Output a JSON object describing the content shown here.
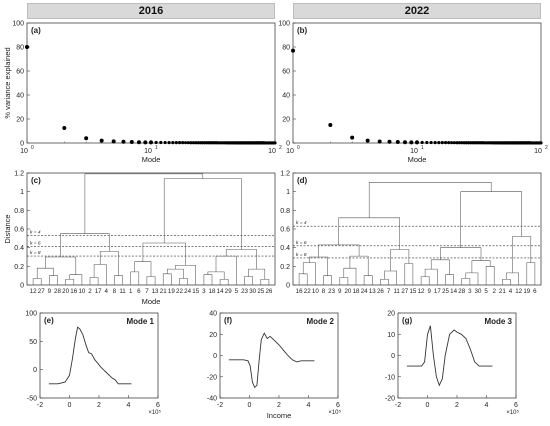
{
  "headers": {
    "left": "2016",
    "right": "2022"
  },
  "chart_data": [
    {
      "id": "a",
      "panel_label": "(a)",
      "type": "scatter",
      "x_scale": "log",
      "xlabel": "Mode",
      "ylabel": "% variance explained",
      "xlim": [
        1,
        100
      ],
      "ylim": [
        0,
        100
      ],
      "xticks": [
        {
          "v": 1,
          "label": "10",
          "exp": "0"
        },
        {
          "v": 10,
          "label": "10",
          "exp": "1"
        },
        {
          "v": 100,
          "label": "10",
          "exp": "2"
        }
      ],
      "yticks": [
        0,
        20,
        40,
        60,
        80,
        100
      ],
      "x": [
        1,
        2,
        3,
        4,
        5,
        6,
        7,
        8,
        9,
        10,
        11,
        12,
        13,
        14,
        15,
        16,
        17,
        18,
        19,
        20,
        21,
        22,
        23,
        24,
        25,
        26,
        27,
        28,
        29,
        30,
        31,
        32,
        33,
        34,
        35,
        36,
        37,
        38,
        39,
        40,
        41,
        42,
        43,
        44,
        45,
        46,
        47,
        48,
        49,
        50,
        51,
        52,
        53,
        54,
        55,
        56,
        57,
        58,
        59,
        60,
        61,
        62,
        63,
        64,
        65,
        66,
        67,
        68,
        69,
        70,
        71,
        72,
        73,
        74,
        75,
        76,
        77,
        78,
        79,
        80,
        81,
        82,
        83,
        84,
        85,
        86,
        87,
        88,
        89,
        90,
        91,
        92,
        93,
        94,
        95,
        96,
        97,
        98,
        99,
        100
      ],
      "y": [
        80,
        12.5,
        4,
        2,
        1.4,
        1,
        0.8,
        0.65,
        0.55,
        0.5,
        0.45,
        0.4,
        0.38,
        0.36,
        0.34,
        0.32,
        0.3,
        0.29,
        0.28,
        0.27,
        0.26,
        0.25,
        0.24,
        0.23,
        0.22,
        0.22,
        0.21,
        0.21,
        0.2,
        0.2,
        0.19,
        0.19,
        0.18,
        0.18,
        0.17,
        0.17,
        0.17,
        0.16,
        0.16,
        0.16,
        0.15,
        0.15,
        0.15,
        0.14,
        0.14,
        0.14,
        0.14,
        0.13,
        0.13,
        0.13,
        0.13,
        0.12,
        0.12,
        0.12,
        0.12,
        0.12,
        0.11,
        0.11,
        0.11,
        0.11,
        0.11,
        0.1,
        0.1,
        0.1,
        0.1,
        0.1,
        0.1,
        0.09,
        0.09,
        0.09,
        0.09,
        0.09,
        0.09,
        0.09,
        0.08,
        0.08,
        0.08,
        0.08,
        0.08,
        0.08,
        0.08,
        0.08,
        0.07,
        0.07,
        0.07,
        0.07,
        0.07,
        0.07,
        0.07,
        0.07,
        0.07,
        0.06,
        0.06,
        0.06,
        0.06,
        0.06,
        0.06,
        0.06,
        0.06,
        0.06
      ]
    },
    {
      "id": "b",
      "panel_label": "(b)",
      "type": "scatter",
      "x_scale": "log",
      "xlabel": "Mode",
      "ylabel": "",
      "xlim": [
        1,
        100
      ],
      "ylim": [
        0,
        100
      ],
      "xticks": [
        {
          "v": 1,
          "label": "10",
          "exp": "0"
        },
        {
          "v": 10,
          "label": "10",
          "exp": "1"
        },
        {
          "v": 100,
          "label": "10",
          "exp": "2"
        }
      ],
      "yticks": [
        0,
        20,
        40,
        60,
        80,
        100
      ],
      "x": [
        1,
        2,
        3,
        4,
        5,
        6,
        7,
        8,
        9,
        10,
        11,
        12,
        13,
        14,
        15,
        16,
        17,
        18,
        19,
        20,
        21,
        22,
        23,
        24,
        25,
        26,
        27,
        28,
        29,
        30,
        31,
        32,
        33,
        34,
        35,
        36,
        37,
        38,
        39,
        40,
        41,
        42,
        43,
        44,
        45,
        46,
        47,
        48,
        49,
        50,
        51,
        52,
        53,
        54,
        55,
        56,
        57,
        58,
        59,
        60,
        61,
        62,
        63,
        64,
        65,
        66,
        67,
        68,
        69,
        70,
        71,
        72,
        73,
        74,
        75,
        76,
        77,
        78,
        79,
        80,
        81,
        82,
        83,
        84,
        85,
        86,
        87,
        88,
        89,
        90,
        91,
        92,
        93,
        94,
        95,
        96,
        97,
        98,
        99,
        100
      ],
      "y": [
        77,
        15,
        4.5,
        2,
        1.3,
        1,
        0.8,
        0.65,
        0.55,
        0.5,
        0.45,
        0.4,
        0.38,
        0.36,
        0.34,
        0.32,
        0.3,
        0.29,
        0.28,
        0.27,
        0.26,
        0.25,
        0.24,
        0.23,
        0.22,
        0.22,
        0.21,
        0.21,
        0.2,
        0.2,
        0.19,
        0.19,
        0.18,
        0.18,
        0.17,
        0.17,
        0.17,
        0.16,
        0.16,
        0.16,
        0.15,
        0.15,
        0.15,
        0.14,
        0.14,
        0.14,
        0.14,
        0.13,
        0.13,
        0.13,
        0.13,
        0.12,
        0.12,
        0.12,
        0.12,
        0.12,
        0.11,
        0.11,
        0.11,
        0.11,
        0.11,
        0.1,
        0.1,
        0.1,
        0.1,
        0.1,
        0.1,
        0.09,
        0.09,
        0.09,
        0.09,
        0.09,
        0.09,
        0.09,
        0.08,
        0.08,
        0.08,
        0.08,
        0.08,
        0.08,
        0.08,
        0.08,
        0.07,
        0.07,
        0.07,
        0.07,
        0.07,
        0.07,
        0.07,
        0.07,
        0.07,
        0.06,
        0.06,
        0.06,
        0.06,
        0.06,
        0.06,
        0.06,
        0.06,
        0.06
      ]
    },
    {
      "id": "c",
      "panel_label": "(c)",
      "type": "dendrogram",
      "xlabel": "Mode",
      "ylabel": "Distance",
      "ylim": [
        0,
        1.2
      ],
      "yticks": [
        0,
        0.2,
        0.4,
        0.6,
        0.8,
        1.0,
        1.2
      ],
      "leaves": [
        "12",
        "27",
        "9",
        "28",
        "20",
        "16",
        "10",
        "2",
        "17",
        "4",
        "8",
        "11",
        "1",
        "6",
        "7",
        "13",
        "21",
        "19",
        "22",
        "24",
        "15",
        "3",
        "18",
        "14",
        "29",
        "5",
        "23",
        "30",
        "25",
        "26"
      ],
      "cut_lines": [
        {
          "label": "k = 4",
          "y": 0.53
        },
        {
          "label": "k = 6",
          "y": 0.41
        },
        {
          "label": "k = 8",
          "y": 0.31
        }
      ],
      "merges": [
        {
          "a": 0,
          "b": 1,
          "h": 0.07
        },
        {
          "a": 2,
          "b": 3,
          "h": 0.1
        },
        {
          "a": 30,
          "b": 31,
          "h": 0.18
        },
        {
          "a": 4,
          "b": 5,
          "h": 0.06
        },
        {
          "a": 33,
          "b": 6,
          "h": 0.11
        },
        {
          "a": 32,
          "b": 34,
          "h": 0.3
        },
        {
          "a": 7,
          "b": 8,
          "h": 0.08
        },
        {
          "a": 36,
          "b": 9,
          "h": 0.22
        },
        {
          "a": 10,
          "b": 11,
          "h": 0.1
        },
        {
          "a": 37,
          "b": 38,
          "h": 0.36
        },
        {
          "a": 35,
          "b": 39,
          "h": 0.55
        },
        {
          "a": 12,
          "b": 13,
          "h": 0.14
        },
        {
          "a": 14,
          "b": 15,
          "h": 0.09
        },
        {
          "a": 41,
          "b": 42,
          "h": 0.25
        },
        {
          "a": 16,
          "b": 17,
          "h": 0.12
        },
        {
          "a": 18,
          "b": 19,
          "h": 0.07
        },
        {
          "a": 44,
          "b": 45,
          "h": 0.17
        },
        {
          "a": 46,
          "b": 20,
          "h": 0.21
        },
        {
          "a": 43,
          "b": 47,
          "h": 0.45
        },
        {
          "a": 21,
          "b": 22,
          "h": 0.11
        },
        {
          "a": 23,
          "b": 24,
          "h": 0.06
        },
        {
          "a": 49,
          "b": 50,
          "h": 0.14
        },
        {
          "a": 51,
          "b": 25,
          "h": 0.31
        },
        {
          "a": 26,
          "b": 27,
          "h": 0.09
        },
        {
          "a": 28,
          "b": 29,
          "h": 0.06
        },
        {
          "a": 53,
          "b": 54,
          "h": 0.17
        },
        {
          "a": 52,
          "b": 55,
          "h": 0.38
        },
        {
          "a": 48,
          "b": 56,
          "h": 1.14
        },
        {
          "a": 40,
          "b": 57,
          "h": 1.19
        }
      ]
    },
    {
      "id": "d",
      "panel_label": "(d)",
      "type": "dendrogram",
      "xlabel": "",
      "ylabel": "",
      "ylim": [
        0,
        1.2
      ],
      "yticks": [
        0,
        0.2,
        0.4,
        0.6,
        0.8,
        1.0,
        1.2
      ],
      "leaves": [
        "16",
        "22",
        "10",
        "8",
        "23",
        "9",
        "20",
        "18",
        "24",
        "13",
        "26",
        "7",
        "11",
        "27",
        "15",
        "12",
        "9",
        "17",
        "25",
        "14",
        "28",
        "3",
        "30",
        "5",
        "2",
        "21",
        "4",
        "12",
        "19",
        "6"
      ],
      "cut_lines": [
        {
          "label": "k = 4",
          "y": 0.63
        },
        {
          "label": "k = 6",
          "y": 0.42
        },
        {
          "label": "k = 8",
          "y": 0.29
        }
      ],
      "merges": [
        {
          "a": 0,
          "b": 1,
          "h": 0.12
        },
        {
          "a": 30,
          "b": 2,
          "h": 0.24
        },
        {
          "a": 3,
          "b": 4,
          "h": 0.1
        },
        {
          "a": 31,
          "b": 32,
          "h": 0.3
        },
        {
          "a": 5,
          "b": 6,
          "h": 0.08
        },
        {
          "a": 34,
          "b": 7,
          "h": 0.18
        },
        {
          "a": 8,
          "b": 9,
          "h": 0.1
        },
        {
          "a": 35,
          "b": 36,
          "h": 0.31
        },
        {
          "a": 33,
          "b": 37,
          "h": 0.43
        },
        {
          "a": 10,
          "b": 11,
          "h": 0.06
        },
        {
          "a": 39,
          "b": 12,
          "h": 0.15
        },
        {
          "a": 13,
          "b": 14,
          "h": 0.23
        },
        {
          "a": 40,
          "b": 41,
          "h": 0.38
        },
        {
          "a": 38,
          "b": 42,
          "h": 0.72
        },
        {
          "a": 15,
          "b": 16,
          "h": 0.09
        },
        {
          "a": 44,
          "b": 17,
          "h": 0.17
        },
        {
          "a": 18,
          "b": 19,
          "h": 0.11
        },
        {
          "a": 45,
          "b": 46,
          "h": 0.27
        },
        {
          "a": 20,
          "b": 21,
          "h": 0.07
        },
        {
          "a": 48,
          "b": 22,
          "h": 0.13
        },
        {
          "a": 23,
          "b": 24,
          "h": 0.2
        },
        {
          "a": 49,
          "b": 50,
          "h": 0.26
        },
        {
          "a": 47,
          "b": 51,
          "h": 0.4
        },
        {
          "a": 25,
          "b": 26,
          "h": 0.06
        },
        {
          "a": 53,
          "b": 27,
          "h": 0.13
        },
        {
          "a": 28,
          "b": 29,
          "h": 0.24
        },
        {
          "a": 54,
          "b": 55,
          "h": 0.52
        },
        {
          "a": 52,
          "b": 56,
          "h": 1.0
        },
        {
          "a": 43,
          "b": 57,
          "h": 1.1
        }
      ]
    },
    {
      "id": "e",
      "panel_label": "(e)",
      "title": "Mode 1",
      "type": "line",
      "xlabel": "",
      "ylabel": "",
      "xlim": [
        -2,
        6
      ],
      "ylim": [
        -50,
        100
      ],
      "xticks": [
        -2,
        0,
        2,
        4,
        6
      ],
      "yticks": [
        -50,
        0,
        50,
        100
      ],
      "x_mult": "×10⁵",
      "x": [
        -1.4,
        -0.8,
        -0.3,
        0,
        0.2,
        0.4,
        0.55,
        0.7,
        0.9,
        1.1,
        1.3,
        1.5,
        1.7,
        1.9,
        2.1,
        2.3,
        2.5,
        2.7,
        2.9,
        3.1,
        3.3,
        3.5,
        4.2
      ],
      "y": [
        -25,
        -25,
        -22,
        -10,
        20,
        55,
        75,
        72,
        62,
        45,
        30,
        28,
        18,
        12,
        5,
        0,
        -5,
        -10,
        -15,
        -18,
        -25,
        -25,
        -25
      ]
    },
    {
      "id": "f",
      "panel_label": "(f)",
      "title": "Mode 2",
      "type": "line",
      "xlabel": "Income",
      "ylabel": "",
      "xlim": [
        -2,
        6
      ],
      "ylim": [
        -40,
        40
      ],
      "xticks": [
        -2,
        0,
        2,
        4,
        6
      ],
      "yticks": [
        -40,
        -20,
        0,
        20,
        40
      ],
      "x_mult": "×10⁵",
      "x": [
        -1.4,
        -0.8,
        -0.4,
        -0.1,
        0.05,
        0.2,
        0.35,
        0.5,
        0.65,
        0.8,
        1.0,
        1.2,
        1.4,
        1.7,
        2.0,
        2.3,
        2.6,
        2.9,
        3.2,
        3.5,
        4.0,
        4.4
      ],
      "y": [
        -4,
        -4,
        -4,
        -5,
        -10,
        -25,
        -30,
        -28,
        -5,
        15,
        21,
        16,
        18,
        14,
        10,
        5,
        0,
        -4,
        -6,
        -5,
        -5,
        -5
      ]
    },
    {
      "id": "g",
      "panel_label": "(g)",
      "title": "Mode 3",
      "type": "line",
      "xlabel": "",
      "ylabel": "",
      "xlim": [
        -2,
        6
      ],
      "ylim": [
        -20,
        20
      ],
      "xticks": [
        -2,
        0,
        2,
        4,
        6
      ],
      "yticks": [
        -20,
        -10,
        0,
        10,
        20
      ],
      "x_mult": "×10⁵",
      "x": [
        -1.4,
        -0.8,
        -0.4,
        -0.2,
        0,
        0.2,
        0.4,
        0.6,
        0.8,
        1.0,
        1.2,
        1.5,
        1.8,
        2.0,
        2.3,
        2.6,
        2.9,
        3.2,
        3.5,
        4.0,
        4.4
      ],
      "y": [
        -5,
        -5,
        -5,
        -3,
        10,
        14,
        0,
        -10,
        -14,
        -11,
        0,
        10,
        12,
        11,
        10,
        8,
        3,
        -3,
        -5,
        -5,
        -5
      ]
    }
  ]
}
